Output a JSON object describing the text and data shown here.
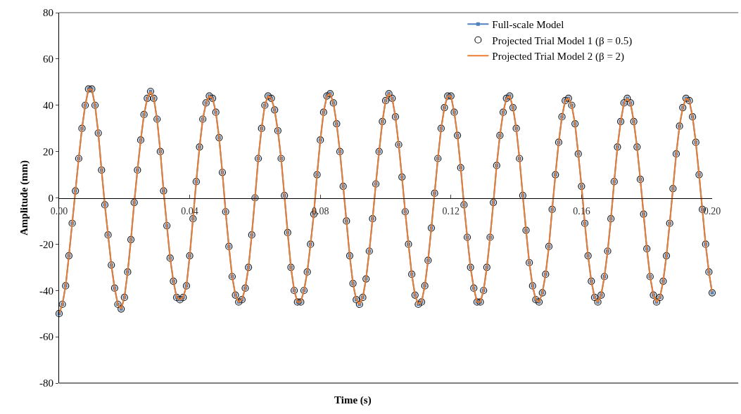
{
  "chart_data": {
    "type": "line",
    "xlabel": "Time (s)",
    "ylabel": "Amplitude (mm)",
    "xlim": [
      0,
      0.2
    ],
    "xticks": [
      {
        "value": 0,
        "label": "0.00"
      },
      {
        "value": 0.04,
        "label": "0.04"
      },
      {
        "value": 0.08,
        "label": "0.08"
      },
      {
        "value": 0.12,
        "label": "0.12"
      },
      {
        "value": 0.16,
        "label": "0.16"
      },
      {
        "value": 0.2,
        "label": "0.20"
      }
    ],
    "ylim": [
      -80,
      80
    ],
    "yticks": [
      -80,
      -60,
      -40,
      -20,
      0,
      20,
      40,
      60,
      80
    ],
    "grid": false,
    "legend": "top right",
    "line_style": "solid",
    "x": [
      0,
      0.001,
      0.002,
      0.003,
      0.004,
      0.005,
      0.006,
      0.007,
      0.008,
      0.009,
      0.01,
      0.011,
      0.012,
      0.013,
      0.014,
      0.015,
      0.016,
      0.017,
      0.018,
      0.019,
      0.02,
      0.021,
      0.022,
      0.023,
      0.024,
      0.025,
      0.026,
      0.027,
      0.028,
      0.029,
      0.03,
      0.031,
      0.032,
      0.033,
      0.034,
      0.035,
      0.036,
      0.037,
      0.038,
      0.039,
      0.04,
      0.041,
      0.042,
      0.043,
      0.044,
      0.045,
      0.046,
      0.047,
      0.048,
      0.049,
      0.05,
      0.051,
      0.052,
      0.053,
      0.054,
      0.055,
      0.056,
      0.057,
      0.058,
      0.059,
      0.06,
      0.061,
      0.062,
      0.063,
      0.064,
      0.065,
      0.066,
      0.067,
      0.068,
      0.069,
      0.07,
      0.071,
      0.072,
      0.073,
      0.074,
      0.075,
      0.076,
      0.077,
      0.078,
      0.079,
      0.08,
      0.081,
      0.082,
      0.083,
      0.084,
      0.085,
      0.086,
      0.087,
      0.088,
      0.089,
      0.09,
      0.091,
      0.092,
      0.093,
      0.094,
      0.095,
      0.096,
      0.097,
      0.098,
      0.099,
      0.1,
      0.101,
      0.102,
      0.103,
      0.104,
      0.105,
      0.106,
      0.107,
      0.108,
      0.109,
      0.11,
      0.111,
      0.112,
      0.113,
      0.114,
      0.115,
      0.116,
      0.117,
      0.118,
      0.119,
      0.12,
      0.121,
      0.122,
      0.123,
      0.124,
      0.125,
      0.126,
      0.127,
      0.128,
      0.129,
      0.13,
      0.131,
      0.132,
      0.133,
      0.134,
      0.135,
      0.136,
      0.137,
      0.138,
      0.139,
      0.14,
      0.141,
      0.142,
      0.143,
      0.144,
      0.145,
      0.146,
      0.147,
      0.148,
      0.149,
      0.15,
      0.151,
      0.152,
      0.153,
      0.154,
      0.155,
      0.156,
      0.157,
      0.158,
      0.159,
      0.16,
      0.161,
      0.162,
      0.163,
      0.164,
      0.165,
      0.166,
      0.167,
      0.168,
      0.169,
      0.17,
      0.171,
      0.172,
      0.173,
      0.174,
      0.175,
      0.176,
      0.177,
      0.178,
      0.179,
      0.18,
      0.181,
      0.182,
      0.183,
      0.184,
      0.185,
      0.186,
      0.187,
      0.188,
      0.189,
      0.19,
      0.191,
      0.192,
      0.193,
      0.194,
      0.195,
      0.196,
      0.197,
      0.198,
      0.199,
      0.2
    ],
    "series": [
      {
        "name": "Full-scale Model",
        "type": "line",
        "marker": "square",
        "color": "#4f81bd",
        "values": [
          -50,
          -46,
          -38,
          -25,
          -11,
          3,
          17,
          30,
          40,
          47,
          47,
          40,
          28,
          12,
          -3,
          -16,
          -29,
          -39,
          -46,
          -48,
          -43,
          -32,
          -18,
          -2,
          12,
          25,
          36,
          43,
          46,
          43,
          34,
          20,
          3,
          -12,
          -26,
          -36,
          -43,
          -44,
          -43,
          -38,
          -25,
          -9,
          7,
          22,
          34,
          41,
          44,
          43,
          37,
          26,
          11,
          -6,
          -21,
          -34,
          -42,
          -45,
          -44,
          -39,
          -30,
          -16,
          0,
          17,
          30,
          40,
          44,
          43,
          38,
          29,
          17,
          1,
          -15,
          -30,
          -40,
          -45,
          -45,
          -40,
          -32,
          -20,
          -7,
          10,
          25,
          37,
          44,
          45,
          41,
          32,
          20,
          5,
          -10,
          -25,
          -37,
          -44,
          -46,
          -43,
          -35,
          -23,
          -9,
          6,
          20,
          33,
          42,
          45,
          43,
          35,
          23,
          9,
          -6,
          -20,
          -33,
          -42,
          -46,
          -45,
          -38,
          -27,
          -13,
          2,
          17,
          30,
          39,
          44,
          44,
          37,
          27,
          13,
          -3,
          -17,
          -30,
          -39,
          -45,
          -45,
          -40,
          -30,
          -17,
          -2,
          14,
          27,
          37,
          43,
          44,
          39,
          30,
          17,
          1,
          -14,
          -28,
          -38,
          -44,
          -45,
          -41,
          -33,
          -21,
          -5,
          10,
          24,
          35,
          42,
          43,
          40,
          32,
          19,
          5,
          -11,
          -25,
          -36,
          -43,
          -45,
          -42,
          -34,
          -23,
          -9,
          7,
          22,
          33,
          41,
          43,
          41,
          33,
          22,
          8,
          -7,
          -22,
          -34,
          -42,
          -45,
          -43,
          -36,
          -25,
          -11,
          4,
          19,
          31,
          39,
          43,
          42,
          35,
          24,
          10,
          -5,
          -20,
          -32,
          -41
        ]
      },
      {
        "name": "Projected Trial Model 1 (β = 0.5)",
        "type": "scatter",
        "marker": "circle",
        "color": "#1a1a1a",
        "values": [
          -50,
          -46,
          -38,
          -25,
          -11,
          3,
          17,
          30,
          40,
          47,
          47,
          40,
          28,
          12,
          -3,
          -16,
          -29,
          -39,
          -46,
          -48,
          -43,
          -32,
          -18,
          -2,
          12,
          25,
          36,
          43,
          46,
          43,
          34,
          20,
          3,
          -12,
          -26,
          -36,
          -43,
          -44,
          -43,
          -38,
          -25,
          -9,
          7,
          22,
          34,
          41,
          44,
          43,
          37,
          26,
          11,
          -6,
          -21,
          -34,
          -42,
          -45,
          -44,
          -39,
          -30,
          -16,
          0,
          17,
          30,
          40,
          44,
          43,
          38,
          29,
          17,
          1,
          -15,
          -30,
          -40,
          -45,
          -45,
          -40,
          -32,
          -20,
          -7,
          10,
          25,
          37,
          44,
          45,
          41,
          32,
          20,
          5,
          -10,
          -25,
          -37,
          -44,
          -46,
          -43,
          -35,
          -23,
          -9,
          6,
          20,
          33,
          42,
          45,
          43,
          35,
          23,
          9,
          -6,
          -20,
          -33,
          -42,
          -46,
          -45,
          -38,
          -27,
          -13,
          2,
          17,
          30,
          39,
          44,
          44,
          37,
          27,
          13,
          -3,
          -17,
          -30,
          -39,
          -45,
          -45,
          -40,
          -30,
          -17,
          -2,
          14,
          27,
          37,
          43,
          44,
          39,
          30,
          17,
          1,
          -14,
          -28,
          -38,
          -44,
          -45,
          -41,
          -33,
          -21,
          -5,
          10,
          24,
          35,
          42,
          43,
          40,
          32,
          19,
          5,
          -11,
          -25,
          -36,
          -43,
          -45,
          -42,
          -34,
          -23,
          -9,
          7,
          22,
          33,
          41,
          43,
          41,
          33,
          22,
          8,
          -7,
          -22,
          -34,
          -42,
          -45,
          -43,
          -36,
          -25,
          -11,
          4,
          19,
          31,
          39,
          43,
          42,
          35,
          24,
          10,
          -5,
          -20,
          -32,
          -41
        ]
      },
      {
        "name": "Projected Trial Model 2 (β = 2)",
        "type": "line",
        "marker": "none",
        "color": "#ed7d31",
        "values": [
          -50,
          -46,
          -38,
          -25,
          -11,
          3,
          17,
          30,
          40,
          47,
          47,
          40,
          28,
          12,
          -3,
          -16,
          -29,
          -39,
          -46,
          -48,
          -43,
          -32,
          -18,
          -2,
          12,
          25,
          36,
          43,
          46,
          43,
          34,
          20,
          3,
          -12,
          -26,
          -36,
          -43,
          -44,
          -43,
          -38,
          -25,
          -9,
          7,
          22,
          34,
          41,
          44,
          43,
          37,
          26,
          11,
          -6,
          -21,
          -34,
          -42,
          -45,
          -44,
          -39,
          -30,
          -16,
          0,
          17,
          30,
          40,
          44,
          43,
          38,
          29,
          17,
          1,
          -15,
          -30,
          -40,
          -45,
          -45,
          -40,
          -32,
          -20,
          -7,
          10,
          25,
          37,
          44,
          45,
          41,
          32,
          20,
          5,
          -10,
          -25,
          -37,
          -44,
          -46,
          -43,
          -35,
          -23,
          -9,
          6,
          20,
          33,
          42,
          45,
          43,
          35,
          23,
          9,
          -6,
          -20,
          -33,
          -42,
          -46,
          -45,
          -38,
          -27,
          -13,
          2,
          17,
          30,
          39,
          44,
          44,
          37,
          27,
          13,
          -3,
          -17,
          -30,
          -39,
          -45,
          -45,
          -40,
          -30,
          -17,
          -2,
          14,
          27,
          37,
          43,
          44,
          39,
          30,
          17,
          1,
          -14,
          -28,
          -38,
          -44,
          -45,
          -41,
          -33,
          -21,
          -5,
          10,
          24,
          35,
          42,
          43,
          40,
          32,
          19,
          5,
          -11,
          -25,
          -36,
          -43,
          -45,
          -42,
          -34,
          -23,
          -9,
          7,
          22,
          33,
          41,
          43,
          41,
          33,
          22,
          8,
          -7,
          -22,
          -34,
          -42,
          -45,
          -43,
          -36,
          -25,
          -11,
          4,
          19,
          31,
          39,
          43,
          42,
          35,
          24,
          10,
          -5,
          -20,
          -32,
          -41
        ]
      }
    ]
  }
}
